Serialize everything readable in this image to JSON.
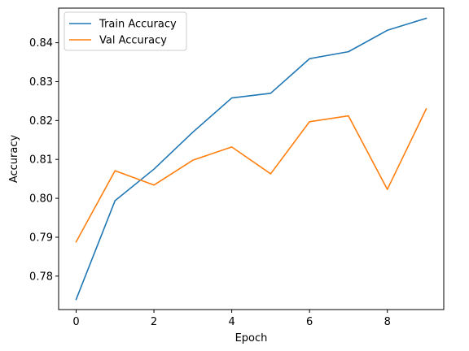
{
  "chart_data": {
    "type": "line",
    "title": "",
    "xlabel": "Epoch",
    "ylabel": "Accuracy",
    "x": [
      0,
      1,
      2,
      3,
      4,
      5,
      6,
      7,
      8,
      9
    ],
    "xticks": [
      0,
      2,
      4,
      6,
      8
    ],
    "yticks": [
      0.78,
      0.79,
      0.8,
      0.81,
      0.82,
      0.83,
      0.84
    ],
    "ytick_labels": [
      "0.78",
      "0.79",
      "0.80",
      "0.81",
      "0.82",
      "0.83",
      "0.84"
    ],
    "xlim": [
      -0.45,
      9.45
    ],
    "ylim": [
      0.7714,
      0.8489
    ],
    "grid": false,
    "legend_position": "top-left",
    "series": [
      {
        "name": "Train Accuracy",
        "color": "#1f77b4",
        "values": [
          0.774,
          0.7994,
          0.8075,
          0.817,
          0.8258,
          0.827,
          0.8359,
          0.8377,
          0.8432,
          0.8463
        ]
      },
      {
        "name": "Val Accuracy",
        "color": "#ff7f0e",
        "values": [
          0.7888,
          0.8071,
          0.8034,
          0.8098,
          0.8132,
          0.8063,
          0.8197,
          0.8212,
          0.8023,
          0.823
        ]
      }
    ]
  }
}
